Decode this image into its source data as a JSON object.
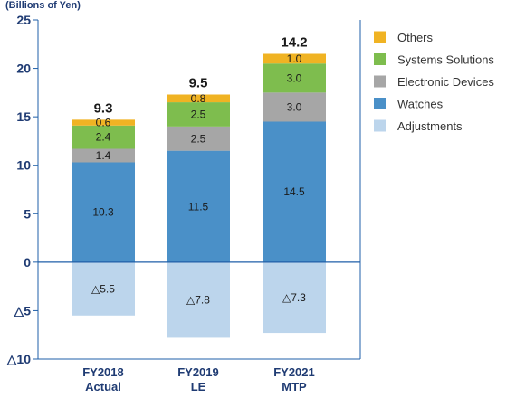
{
  "chart_data": {
    "type": "bar",
    "stacked": true,
    "unit_label": "(Billions of Yen)",
    "categories": [
      [
        "FY2018",
        "Actual"
      ],
      [
        "FY2019",
        "LE"
      ],
      [
        "FY2021",
        "MTP"
      ]
    ],
    "y_ticks": [
      {
        "value": 25,
        "label": "25"
      },
      {
        "value": 20,
        "label": "20"
      },
      {
        "value": 15,
        "label": "15"
      },
      {
        "value": 10,
        "label": "10"
      },
      {
        "value": 5,
        "label": "5"
      },
      {
        "value": 0,
        "label": "0"
      },
      {
        "value": -5,
        "label": "△5"
      },
      {
        "value": -10,
        "label": "△10"
      }
    ],
    "ylim": [
      -10,
      25
    ],
    "series": [
      {
        "name": "Adjustments",
        "color": "#bcd5ec",
        "values": [
          -5.5,
          -7.8,
          -7.3
        ],
        "labels": [
          "△5.5",
          "△7.8",
          "△7.3"
        ]
      },
      {
        "name": "Watches",
        "color": "#4a90c8",
        "values": [
          10.3,
          11.5,
          14.5
        ],
        "labels": [
          "10.3",
          "11.5",
          "14.5"
        ]
      },
      {
        "name": "Electronic Devices",
        "color": "#a6a6a6",
        "values": [
          1.4,
          2.5,
          3.0
        ],
        "labels": [
          "1.4",
          "2.5",
          "3.0"
        ]
      },
      {
        "name": "Systems Solutions",
        "color": "#7ebd4e",
        "values": [
          2.4,
          2.5,
          3.0
        ],
        "labels": [
          "2.4",
          "2.5",
          "3.0"
        ]
      },
      {
        "name": "Others",
        "color": "#f0b323",
        "values": [
          0.6,
          0.8,
          1.0
        ],
        "labels": [
          "0.6",
          "0.8",
          "1.0"
        ]
      }
    ],
    "totals": [
      "9.3",
      "9.5",
      "14.2"
    ],
    "legend": {
      "position": "right",
      "order": [
        "Others",
        "Systems Solutions",
        "Electronic Devices",
        "Watches",
        "Adjustments"
      ]
    },
    "axis_color": "#1f5fa8"
  }
}
